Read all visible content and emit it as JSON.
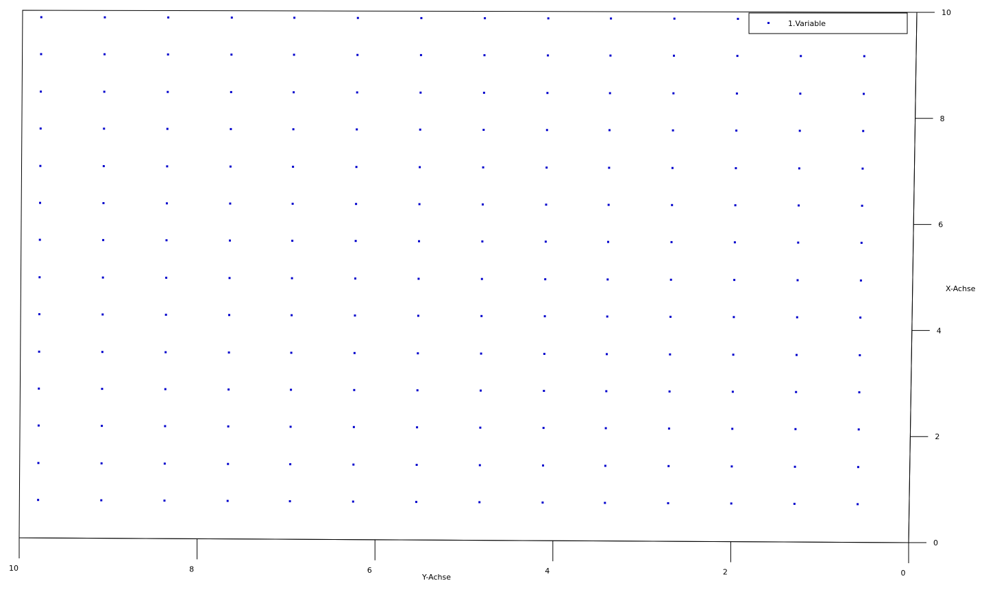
{
  "chart_data": {
    "type": "scatter",
    "title": "",
    "xlabel": "Y-Achse",
    "ylabel": "X-Achse",
    "xlim": [
      10,
      0
    ],
    "ylim": [
      0,
      10
    ],
    "x_ticks": [
      10,
      8,
      6,
      4,
      2,
      0
    ],
    "y_ticks": [
      0,
      2,
      4,
      6,
      8,
      10
    ],
    "grid": false,
    "legend_position": "top-right",
    "series": [
      {
        "name": "1.Variable",
        "color": "#0000cc",
        "marker": "square",
        "x": [
          9.79,
          9.08,
          8.37,
          7.66,
          6.96,
          6.25,
          5.54,
          4.83,
          4.12,
          3.42,
          2.71,
          2.0,
          1.29,
          0.58
        ],
        "y": [
          0.72,
          1.42,
          2.13,
          2.83,
          3.53,
          4.24,
          4.94,
          5.65,
          6.35,
          7.05,
          7.76,
          8.46,
          9.17,
          9.87
        ]
      }
    ]
  }
}
